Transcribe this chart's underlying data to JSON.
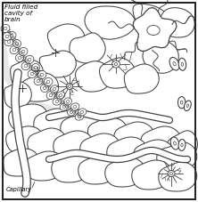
{
  "label_fluid": "Fluid filled\ncavity of\nbrain",
  "label_capillary": "Capillary",
  "line_color": "#444444",
  "figsize": [
    2.22,
    2.27
  ],
  "dpi": 100
}
